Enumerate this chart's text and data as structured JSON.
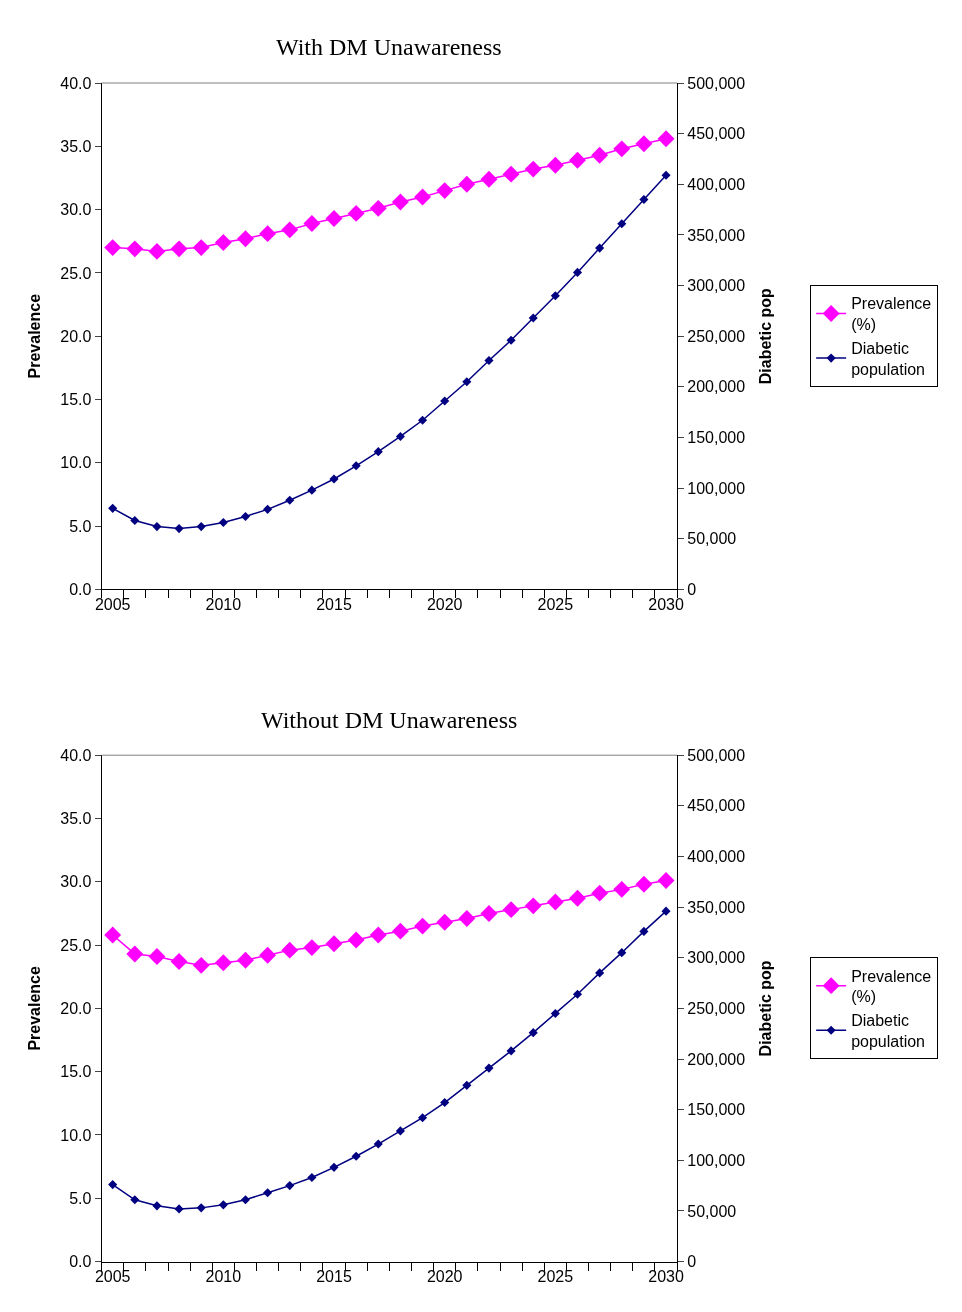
{
  "chart_data": [
    {
      "type": "line",
      "title": "With DM Unawareness",
      "ylabel": "Prevalence",
      "y2label": "Diabetic pop",
      "marker": "diamond",
      "legend": "right",
      "x": [
        2005,
        2006,
        2007,
        2008,
        2009,
        2010,
        2011,
        2012,
        2013,
        2014,
        2015,
        2016,
        2017,
        2018,
        2019,
        2020,
        2021,
        2022,
        2023,
        2024,
        2025,
        2026,
        2027,
        2028,
        2029,
        2030
      ],
      "xlim": [
        2004.5,
        2030.5
      ],
      "xticks": [
        2005,
        2010,
        2015,
        2020,
        2025,
        2030,
        {
          "value": 2004.5,
          "label": null
        },
        {
          "value": 2005.5,
          "label": null
        },
        {
          "value": 2006.5,
          "label": null
        },
        {
          "value": 2007.5,
          "label": null
        },
        {
          "value": 2008.5,
          "label": null
        },
        {
          "value": 2009.5,
          "label": null
        },
        {
          "value": 2010.5,
          "label": null
        },
        {
          "value": 2011.5,
          "label": null
        },
        {
          "value": 2012.5,
          "label": null
        },
        {
          "value": 2013.5,
          "label": null
        },
        {
          "value": 2014.5,
          "label": null
        },
        {
          "value": 2015.5,
          "label": null
        },
        {
          "value": 2016.5,
          "label": null
        },
        {
          "value": 2017.5,
          "label": null
        },
        {
          "value": 2018.5,
          "label": null
        },
        {
          "value": 2019.5,
          "label": null
        },
        {
          "value": 2020.5,
          "label": null
        },
        {
          "value": 2021.5,
          "label": null
        },
        {
          "value": 2022.5,
          "label": null
        },
        {
          "value": 2023.5,
          "label": null
        },
        {
          "value": 2024.5,
          "label": null
        },
        {
          "value": 2025.5,
          "label": null
        },
        {
          "value": 2026.5,
          "label": null
        },
        {
          "value": 2027.5,
          "label": null
        },
        {
          "value": 2028.5,
          "label": null
        },
        {
          "value": 2029.5,
          "label": null
        },
        {
          "value": 2030.5,
          "label": null
        }
      ],
      "ylim": [
        0,
        40
      ],
      "yticks": [
        {
          "value": 0,
          "label": "0.0"
        },
        {
          "value": 5,
          "label": "5.0"
        },
        {
          "value": 10,
          "label": "10.0"
        },
        {
          "value": 15,
          "label": "15.0"
        },
        {
          "value": 20,
          "label": "20.0"
        },
        {
          "value": 25,
          "label": "25.0"
        },
        {
          "value": 30,
          "label": "30.0"
        },
        {
          "value": 35,
          "label": "35.0"
        },
        {
          "value": 40,
          "label": "40.0"
        }
      ],
      "y2lim": [
        0,
        500000
      ],
      "y2ticks": [
        0,
        {
          "value": 50000,
          "label": "50,000"
        },
        {
          "value": 100000,
          "label": "100,000"
        },
        {
          "value": 150000,
          "label": "150,000"
        },
        {
          "value": 200000,
          "label": "200,000"
        },
        {
          "value": 250000,
          "label": "250,000"
        },
        {
          "value": 300000,
          "label": "300,000"
        },
        {
          "value": 350000,
          "label": "350,000"
        },
        {
          "value": 400000,
          "label": "400,000"
        },
        {
          "value": 450000,
          "label": "450,000"
        },
        {
          "value": 500000,
          "label": "500,000"
        }
      ],
      "series": [
        {
          "name": "Prevalence (%)",
          "color": "#ff00ff",
          "values": [
            27.0,
            26.9,
            26.7,
            26.9,
            27.0,
            27.4,
            27.7,
            28.1,
            28.4,
            28.9,
            29.3,
            29.7,
            30.1,
            30.6,
            31.0,
            31.5,
            32.0,
            32.4,
            32.8,
            33.2,
            33.5,
            33.9,
            34.3,
            34.8,
            35.2,
            35.6
          ]
        },
        {
          "name": "Diabetic population",
          "color": "#000080",
          "axis": "y2",
          "values": [
            80000,
            68000,
            62000,
            60000,
            62000,
            66000,
            72000,
            79000,
            88000,
            98000,
            109000,
            122000,
            136000,
            151000,
            167000,
            186000,
            205000,
            226000,
            246000,
            268000,
            290000,
            313000,
            337000,
            361000,
            385000,
            409000
          ]
        }
      ]
    },
    {
      "type": "line",
      "title": "Without DM Unawareness",
      "ylabel": "Prevalence",
      "y2label": "Diabetic pop",
      "marker": "diamond",
      "legend": "right",
      "x": [
        2005,
        2006,
        2007,
        2008,
        2009,
        2010,
        2011,
        2012,
        2013,
        2014,
        2015,
        2016,
        2017,
        2018,
        2019,
        2020,
        2021,
        2022,
        2023,
        2024,
        2025,
        2026,
        2027,
        2028,
        2029,
        2030
      ],
      "xlim": [
        2004.5,
        2030.5
      ],
      "xticks": [
        2005,
        2010,
        2015,
        2020,
        2025,
        2030,
        {
          "value": 2004.5,
          "label": null
        },
        {
          "value": 2005.5,
          "label": null
        },
        {
          "value": 2006.5,
          "label": null
        },
        {
          "value": 2007.5,
          "label": null
        },
        {
          "value": 2008.5,
          "label": null
        },
        {
          "value": 2009.5,
          "label": null
        },
        {
          "value": 2010.5,
          "label": null
        },
        {
          "value": 2011.5,
          "label": null
        },
        {
          "value": 2012.5,
          "label": null
        },
        {
          "value": 2013.5,
          "label": null
        },
        {
          "value": 2014.5,
          "label": null
        },
        {
          "value": 2015.5,
          "label": null
        },
        {
          "value": 2016.5,
          "label": null
        },
        {
          "value": 2017.5,
          "label": null
        },
        {
          "value": 2018.5,
          "label": null
        },
        {
          "value": 2019.5,
          "label": null
        },
        {
          "value": 2020.5,
          "label": null
        },
        {
          "value": 2021.5,
          "label": null
        },
        {
          "value": 2022.5,
          "label": null
        },
        {
          "value": 2023.5,
          "label": null
        },
        {
          "value": 2024.5,
          "label": null
        },
        {
          "value": 2025.5,
          "label": null
        },
        {
          "value": 2026.5,
          "label": null
        },
        {
          "value": 2027.5,
          "label": null
        },
        {
          "value": 2028.5,
          "label": null
        },
        {
          "value": 2029.5,
          "label": null
        },
        {
          "value": 2030.5,
          "label": null
        }
      ],
      "ylim": [
        0,
        40
      ],
      "yticks": [
        {
          "value": 0,
          "label": "0.0"
        },
        {
          "value": 5,
          "label": "5.0"
        },
        {
          "value": 10,
          "label": "10.0"
        },
        {
          "value": 15,
          "label": "15.0"
        },
        {
          "value": 20,
          "label": "20.0"
        },
        {
          "value": 25,
          "label": "25.0"
        },
        {
          "value": 30,
          "label": "30.0"
        },
        {
          "value": 35,
          "label": "35.0"
        },
        {
          "value": 40,
          "label": "40.0"
        }
      ],
      "y2lim": [
        0,
        500000
      ],
      "y2ticks": [
        0,
        {
          "value": 50000,
          "label": "50,000"
        },
        {
          "value": 100000,
          "label": "100,000"
        },
        {
          "value": 150000,
          "label": "150,000"
        },
        {
          "value": 200000,
          "label": "200,000"
        },
        {
          "value": 250000,
          "label": "250,000"
        },
        {
          "value": 300000,
          "label": "300,000"
        },
        {
          "value": 350000,
          "label": "350,000"
        },
        {
          "value": 400000,
          "label": "400,000"
        },
        {
          "value": 450000,
          "label": "450,000"
        },
        {
          "value": 500000,
          "label": "500,000"
        }
      ],
      "series": [
        {
          "name": "Prevalence (%)",
          "color": "#ff00ff",
          "values": [
            25.8,
            24.3,
            24.1,
            23.7,
            23.4,
            23.6,
            23.8,
            24.2,
            24.6,
            24.8,
            25.1,
            25.4,
            25.8,
            26.1,
            26.5,
            26.8,
            27.1,
            27.5,
            27.8,
            28.1,
            28.4,
            28.7,
            29.1,
            29.4,
            29.8,
            30.1
          ]
        },
        {
          "name": "Diabetic population",
          "color": "#000080",
          "axis": "y2",
          "values": [
            76000,
            61000,
            55000,
            52000,
            53000,
            56000,
            61000,
            68000,
            75000,
            83000,
            93000,
            104000,
            116000,
            129000,
            142000,
            157000,
            174000,
            191000,
            208000,
            226000,
            245000,
            264000,
            285000,
            305000,
            326000,
            346000
          ]
        }
      ]
    }
  ]
}
